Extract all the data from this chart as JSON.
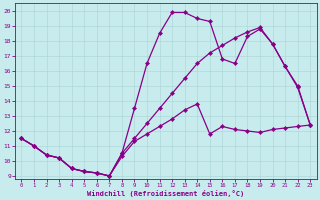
{
  "xlabel": "Windchill (Refroidissement éolien,°C)",
  "bg_color": "#c8ecee",
  "line_color": "#880088",
  "xlim": [
    -0.5,
    23.5
  ],
  "ylim": [
    8.8,
    20.5
  ],
  "xticks": [
    0,
    1,
    2,
    3,
    4,
    5,
    6,
    7,
    8,
    9,
    10,
    11,
    12,
    13,
    14,
    15,
    16,
    17,
    18,
    19,
    20,
    21,
    22,
    23
  ],
  "yticks": [
    9,
    10,
    11,
    12,
    13,
    14,
    15,
    16,
    17,
    18,
    19,
    20
  ],
  "grid_color": "#b0d8d8",
  "markersize": 2.2,
  "linewidth": 0.9,
  "line1_x": [
    0,
    1,
    2,
    3,
    4,
    5,
    6,
    7,
    8,
    9,
    10,
    11,
    12,
    13,
    14,
    15,
    16,
    17,
    18,
    19,
    20,
    21,
    22,
    23
  ],
  "line1_y": [
    11.5,
    11.0,
    10.4,
    10.2,
    9.5,
    9.3,
    9.2,
    9.0,
    10.3,
    11.3,
    11.8,
    12.3,
    12.8,
    13.4,
    13.8,
    11.8,
    12.3,
    12.1,
    12.0,
    11.9,
    12.1,
    12.2,
    12.3,
    12.4
  ],
  "line2_x": [
    0,
    1,
    2,
    3,
    4,
    5,
    6,
    7,
    8,
    9,
    10,
    11,
    12,
    13,
    14,
    15,
    16,
    17,
    18,
    19,
    20,
    21,
    22,
    23
  ],
  "line2_y": [
    11.5,
    11.0,
    10.4,
    10.2,
    9.5,
    9.3,
    9.2,
    9.0,
    10.5,
    13.5,
    16.5,
    18.5,
    19.9,
    19.9,
    19.5,
    19.3,
    16.8,
    16.5,
    18.3,
    18.8,
    17.8,
    16.3,
    14.9,
    12.4
  ],
  "line3_x": [
    0,
    1,
    2,
    3,
    4,
    5,
    6,
    7,
    8,
    9,
    10,
    11,
    12,
    13,
    14,
    15,
    16,
    17,
    18,
    19,
    20,
    21,
    22,
    23
  ],
  "line3_y": [
    11.5,
    11.0,
    10.4,
    10.2,
    9.5,
    9.3,
    9.2,
    9.0,
    10.5,
    11.5,
    12.5,
    13.5,
    14.5,
    15.5,
    16.5,
    17.2,
    17.7,
    18.2,
    18.6,
    18.9,
    17.8,
    16.3,
    15.0,
    12.4
  ]
}
